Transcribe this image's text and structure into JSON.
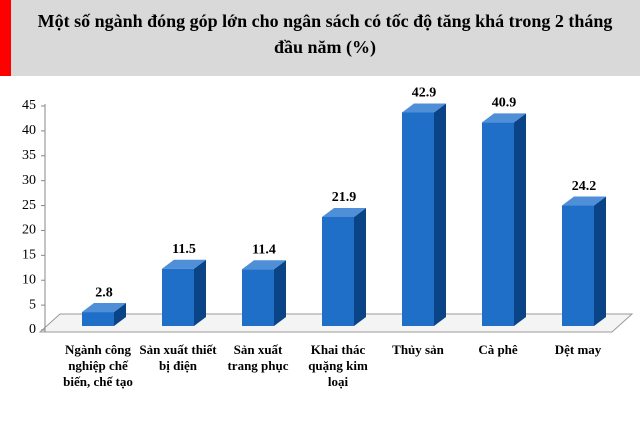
{
  "chart_data": {
    "type": "bar",
    "title": "Một số ngành đóng góp lớn cho ngân sách có tốc độ tăng khá trong 2 tháng đầu năm (%)",
    "categories": [
      "Ngành công nghiệp chế biến, chế tạo",
      "Sản xuất thiết bị điện",
      "Sản xuất trang phục",
      "Khai thác quặng kim loại",
      "Thủy sản",
      "Cà phê",
      "Dệt may"
    ],
    "values": [
      2.8,
      11.5,
      11.4,
      21.9,
      42.9,
      40.9,
      24.2
    ],
    "color": "#1f6fc8",
    "ylim": [
      0,
      45
    ],
    "yticks": [
      0,
      5,
      10,
      15,
      20,
      25,
      30,
      35,
      40,
      45
    ]
  }
}
